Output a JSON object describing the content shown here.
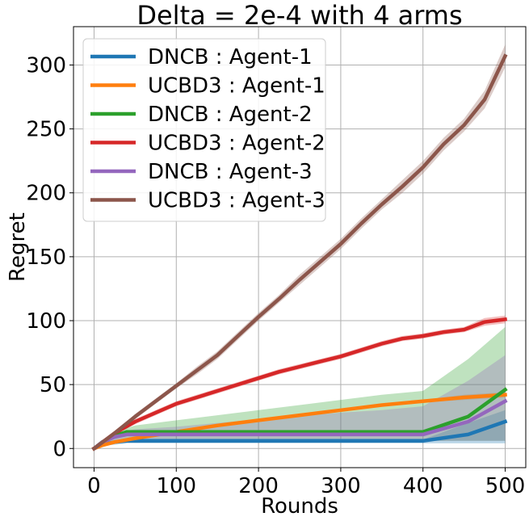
{
  "chart_data": {
    "type": "line",
    "title": "Delta = 2e-4 with 4 arms",
    "xlabel": "Rounds",
    "ylabel": "Regret",
    "xlim": [
      -25,
      525
    ],
    "ylim": [
      -15,
      330
    ],
    "xticks": [
      0,
      100,
      200,
      300,
      400,
      500
    ],
    "yticks": [
      0,
      50,
      100,
      150,
      200,
      250,
      300
    ],
    "xtick_labels": [
      "0",
      "100",
      "200",
      "300",
      "400",
      "500"
    ],
    "ytick_labels": [
      "0",
      "50",
      "100",
      "150",
      "200",
      "250",
      "300"
    ],
    "grid": true,
    "legend_position": "top-left",
    "series": [
      {
        "name": "DNCB : Agent-1",
        "color": "#1f77b4",
        "x": [
          0,
          10,
          25,
          40,
          50,
          60,
          100,
          200,
          300,
          350,
          400,
          455,
          500
        ],
        "y": [
          0,
          3,
          5,
          6,
          6,
          6,
          6,
          6,
          6,
          6,
          6,
          11,
          21
        ],
        "band_low": [
          0,
          2,
          3,
          4,
          4,
          4,
          4,
          4,
          4,
          4,
          4,
          4,
          4
        ],
        "band_high": [
          0,
          4,
          6,
          7,
          7,
          7,
          7,
          7,
          7,
          7,
          7,
          20,
          30
        ]
      },
      {
        "name": "UCBD3 : Agent-1",
        "color": "#ff7f0e",
        "x": [
          0,
          10,
          25,
          50,
          100,
          150,
          200,
          250,
          300,
          350,
          400,
          450,
          500
        ],
        "y": [
          0,
          2.5,
          5,
          8,
          13,
          18,
          22,
          26,
          30,
          34,
          37,
          40,
          42
        ],
        "band_low": [
          0,
          2,
          4,
          7,
          12,
          17,
          21,
          25,
          29,
          33,
          36,
          38,
          40
        ],
        "band_high": [
          0,
          3,
          6,
          9,
          14,
          19,
          23,
          27,
          31,
          35,
          38,
          42,
          44
        ]
      },
      {
        "name": "DNCB : Agent-2",
        "color": "#2ca02c",
        "x": [
          0,
          10,
          25,
          40,
          50,
          100,
          200,
          300,
          350,
          400,
          455,
          500
        ],
        "y": [
          0,
          5,
          10,
          13,
          13,
          13,
          13,
          13,
          13,
          13,
          25,
          46
        ],
        "band_low": [
          0,
          3,
          5,
          6,
          6,
          6,
          6,
          6,
          6,
          6,
          6,
          6
        ],
        "band_high": [
          0,
          6,
          12,
          16,
          18,
          22,
          30,
          38,
          42,
          45,
          70,
          95
        ]
      },
      {
        "name": "UCBD3 : Agent-2",
        "color": "#d62728",
        "x": [
          0,
          25,
          50,
          75,
          100,
          125,
          150,
          175,
          200,
          225,
          250,
          275,
          300,
          325,
          350,
          375,
          400,
          425,
          450,
          475,
          500
        ],
        "y": [
          0,
          12,
          21,
          28,
          35,
          40,
          45,
          50,
          55,
          60,
          64,
          68,
          72,
          77,
          82,
          86,
          88,
          91,
          93,
          99,
          101
        ],
        "band_low": [
          0,
          11,
          19,
          26,
          33,
          38,
          43,
          48,
          53,
          58,
          62,
          66,
          70,
          75,
          80,
          84,
          86,
          89,
          91,
          96,
          98
        ],
        "band_high": [
          0,
          13,
          23,
          30,
          37,
          42,
          47,
          52,
          57,
          62,
          66,
          70,
          74,
          79,
          84,
          88,
          90,
          93,
          95,
          102,
          104
        ]
      },
      {
        "name": "DNCB : Agent-3",
        "color": "#9467bd",
        "x": [
          0,
          10,
          25,
          40,
          50,
          100,
          200,
          300,
          350,
          400,
          455,
          500
        ],
        "y": [
          0,
          5,
          9,
          11,
          11,
          11,
          11,
          11,
          11,
          11,
          21,
          37
        ],
        "band_low": [
          0,
          3,
          5,
          6,
          6,
          6,
          6,
          6,
          6,
          6,
          6,
          6
        ],
        "band_high": [
          0,
          6,
          12,
          14,
          15,
          17,
          23,
          28,
          30,
          33,
          53,
          73
        ]
      },
      {
        "name": "UCBD3 : Agent-3",
        "color": "#8c564b",
        "x": [
          0,
          25,
          50,
          75,
          100,
          125,
          150,
          175,
          200,
          225,
          250,
          275,
          300,
          325,
          350,
          375,
          400,
          425,
          450,
          475,
          500
        ],
        "y": [
          0,
          12,
          25,
          37,
          49,
          61,
          73,
          88,
          103,
          117,
          132,
          146,
          160,
          176,
          191,
          205,
          220,
          238,
          253,
          273,
          307
        ],
        "band_low": [
          0,
          11,
          23,
          35,
          47,
          58,
          70,
          85,
          100,
          114,
          128,
          142,
          156,
          172,
          187,
          200,
          215,
          233,
          248,
          266,
          298
        ],
        "band_high": [
          0,
          13,
          27,
          39,
          51,
          64,
          76,
          91,
          106,
          120,
          136,
          150,
          164,
          180,
          195,
          210,
          225,
          243,
          258,
          280,
          316
        ]
      }
    ]
  }
}
